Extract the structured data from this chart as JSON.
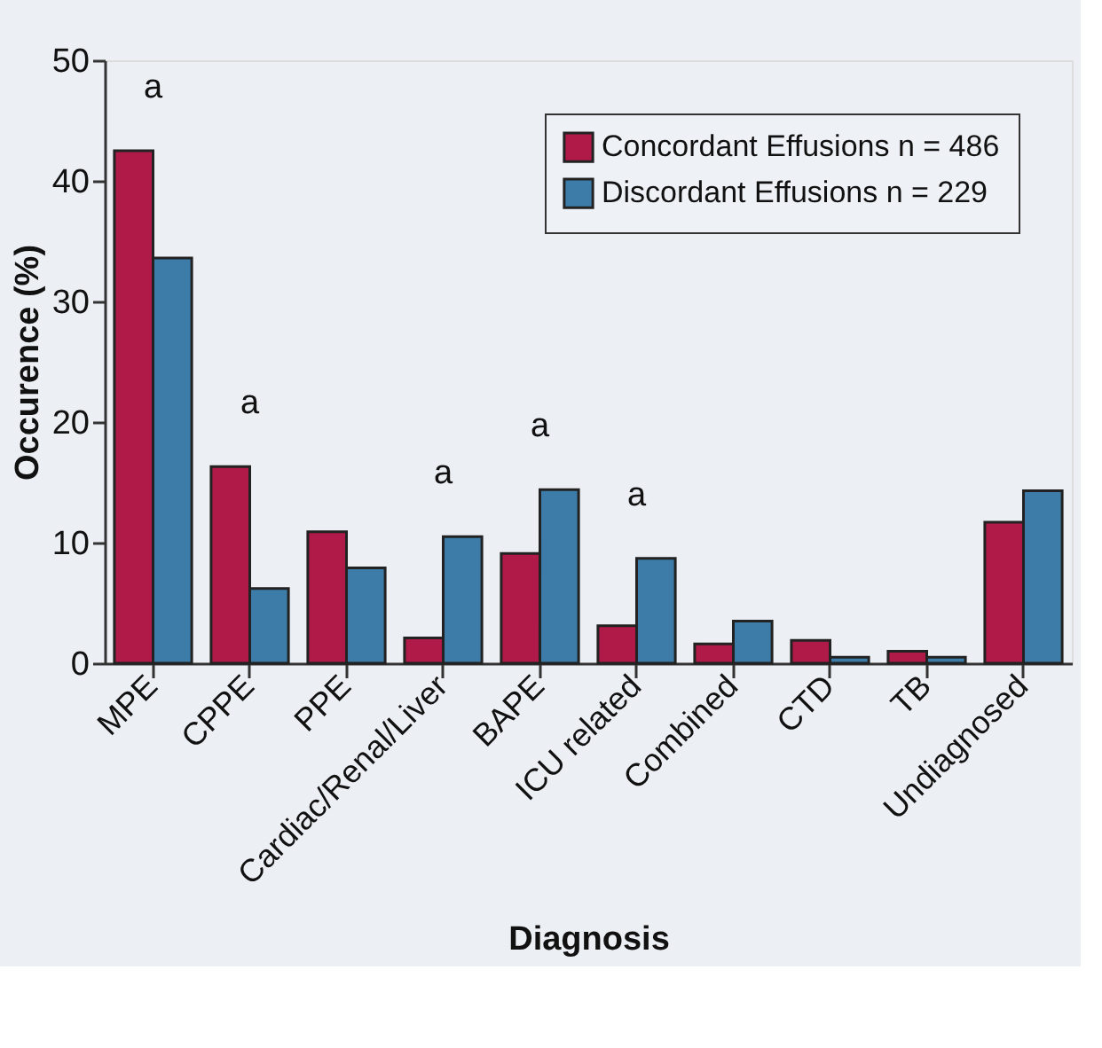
{
  "chart_data": {
    "type": "bar",
    "categories": [
      "MPE",
      "CPPE",
      "PPE",
      "Cardiac/Renal/Liver",
      "BAPE",
      "ICU related",
      "Combined",
      "CTD",
      "TB",
      "Undiagnosed"
    ],
    "series": [
      {
        "name": "Concordant Effusions n = 486",
        "color": "#b01a48",
        "values": [
          42.5,
          16.3,
          10.9,
          2.1,
          9.1,
          3.1,
          1.6,
          1.9,
          1.0,
          11.7
        ]
      },
      {
        "name": "Discordant Effusions n = 229",
        "color": "#3d7ca8",
        "values": [
          33.6,
          6.2,
          7.9,
          10.5,
          14.4,
          8.7,
          3.5,
          0.5,
          0.5,
          14.3
        ]
      }
    ],
    "xlabel": "Diagnosis",
    "ylabel": "Occurence (%)",
    "ylim": [
      0,
      50
    ],
    "yticks": [
      0,
      10,
      20,
      30,
      40,
      50
    ],
    "annotations": [
      "a",
      "a",
      "a",
      "a",
      "a"
    ],
    "legend": "top right",
    "grid": false
  }
}
